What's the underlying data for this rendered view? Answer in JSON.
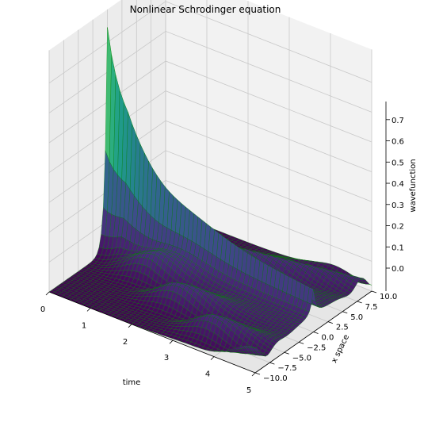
{
  "chart_data": {
    "type": "surface3d",
    "title": "Nonlinear Schrodinger equation",
    "xlabel": "time",
    "ylabel": "x space",
    "zlabel": "wavefunction",
    "xlim": [
      0,
      5
    ],
    "ylim": [
      -10,
      10
    ],
    "zlim": [
      0,
      0.75
    ],
    "x_ticks": [
      0,
      1,
      2,
      3,
      4,
      5
    ],
    "x_tick_labels": [
      "0",
      "1",
      "2",
      "3",
      "4",
      "5"
    ],
    "y_ticks": [
      -10,
      -7.5,
      -5,
      -2.5,
      0,
      2.5,
      5,
      7.5,
      10
    ],
    "y_tick_labels": [
      "−10.0",
      "−7.5",
      "−5.0",
      "−2.5",
      "0.0",
      "2.5",
      "5.0",
      "7.5",
      "10.0"
    ],
    "z_ticks": [
      0,
      0.1,
      0.2,
      0.3,
      0.4,
      0.5,
      0.6,
      0.7
    ],
    "z_tick_labels": [
      "0.0",
      "0.1",
      "0.2",
      "0.3",
      "0.4",
      "0.5",
      "0.6",
      "0.7"
    ],
    "grid": true,
    "colormap": "viridis",
    "edge_color": "#008000",
    "pane_color": "#f2f2f2",
    "surface": {
      "peak_value": 0.75,
      "peak_time": 0,
      "peak_x": 0
    }
  }
}
